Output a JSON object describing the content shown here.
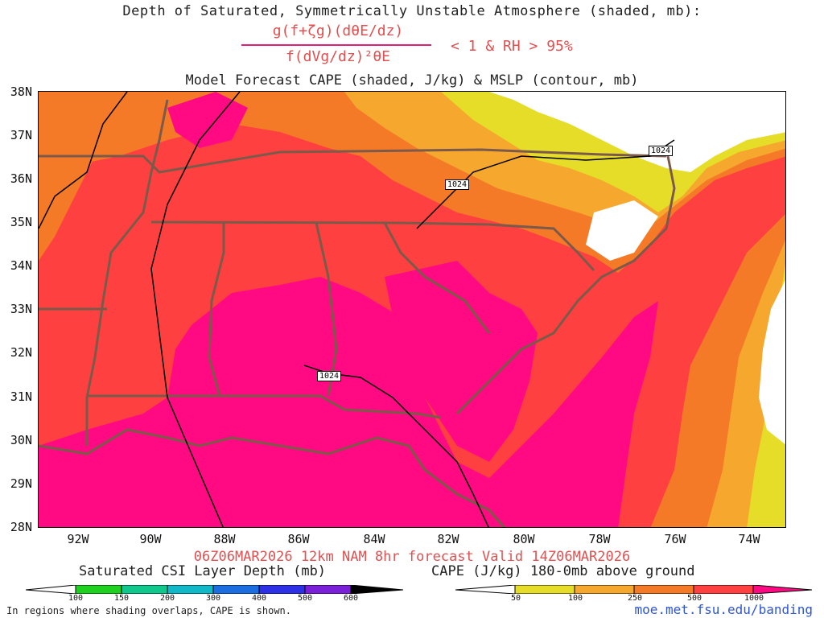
{
  "header": {
    "title_line1": "Depth of Saturated, Symmetrically Unstable Atmosphere (shaded, mb):",
    "formula_numerator": "g(f+ζg)(dθE/dz)",
    "formula_denominator": "f(dVg/dz)²θE",
    "condition": "< 1 & RH > 95%",
    "title_line3": "Model Forecast CAPE (shaded, J/kg) & MSLP (contour, mb)"
  },
  "map": {
    "lat_labels": [
      "38N",
      "37N",
      "36N",
      "35N",
      "34N",
      "33N",
      "32N",
      "31N",
      "30N",
      "29N",
      "28N"
    ],
    "lon_labels": [
      "92W",
      "90W",
      "88W",
      "86W",
      "84W",
      "82W",
      "80W",
      "78W",
      "76W",
      "74W"
    ],
    "contour_labels": [
      "1024",
      "1024",
      "1024"
    ],
    "colors": {
      "cape_1000": "#ff0a82",
      "cape_500": "#ff4040",
      "cape_250": "#f57a28",
      "cape_100": "#f5a82d",
      "cape_50": "#e6dd28",
      "state_lines": "#7b5a4a"
    }
  },
  "footer": {
    "run_info": "06Z06MAR2026 12km NAM 8hr forecast Valid 14Z06MAR2026",
    "csi_title": "Saturated CSI Layer Depth (mb)",
    "cape_title": "CAPE (J/kg) 180-0mb above ground",
    "csi_ticks": [
      "100",
      "150",
      "200",
      "300",
      "400",
      "500",
      "600"
    ],
    "cape_ticks": [
      "50",
      "100",
      "250",
      "500",
      "1000"
    ],
    "note": "In regions where shading overlaps, CAPE is shown.",
    "site": "moe.met.fsu.edu/banding"
  }
}
